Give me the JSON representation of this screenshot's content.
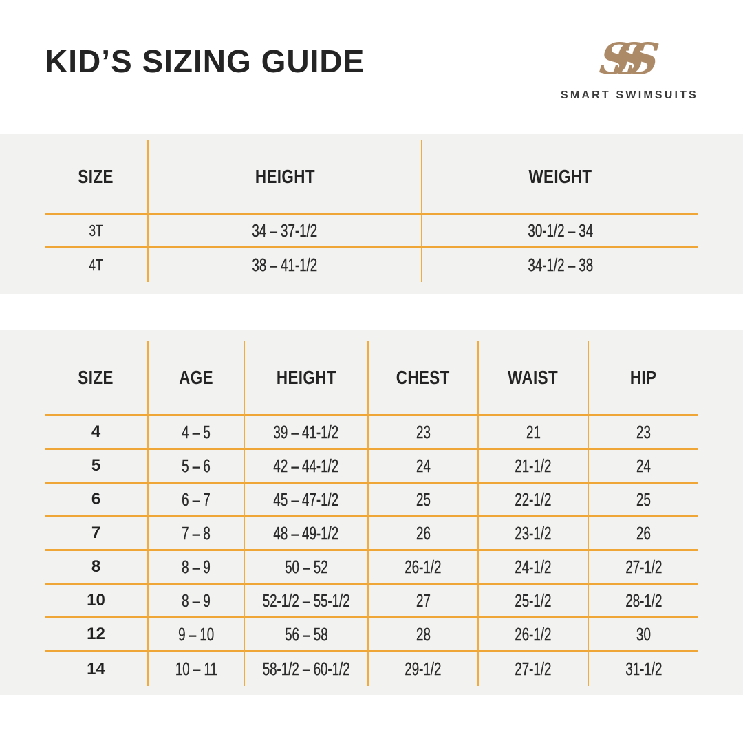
{
  "page": {
    "title": "KID’S SIZING GUIDE",
    "brand": {
      "name": "SMART SWIMSUITS",
      "monogram_letters": [
        "S",
        "S",
        "S"
      ],
      "logo_color": "#AC8A67"
    }
  },
  "colors": {
    "accent_line": "#F0A636",
    "band_background": "#F2F2F0",
    "title_text": "#242424",
    "cell_text": "#2B2B2B"
  },
  "toddler_table": {
    "headers": [
      "SIZE",
      "HEIGHT",
      "WEIGHT"
    ],
    "rows": [
      [
        "3T",
        "34 – 37-1/2",
        "30-1/2 – 34"
      ],
      [
        "4T",
        "38 – 41-1/2",
        "34-1/2 – 38"
      ]
    ]
  },
  "kids_table": {
    "headers": [
      "SIZE",
      "AGE",
      "HEIGHT",
      "CHEST",
      "WAIST",
      "HIP"
    ],
    "rows": [
      [
        "4",
        "4 – 5",
        "39 – 41-1/2",
        "23",
        "21",
        "23"
      ],
      [
        "5",
        "5 – 6",
        "42 – 44-1/2",
        "24",
        "21-1/2",
        "24"
      ],
      [
        "6",
        "6 – 7",
        "45 – 47-1/2",
        "25",
        "22-1/2",
        "25"
      ],
      [
        "7",
        "7 – 8",
        "48 – 49-1/2",
        "26",
        "23-1/2",
        "26"
      ],
      [
        "8",
        "8 – 9",
        "50 – 52",
        "26-1/2",
        "24-1/2",
        "27-1/2"
      ],
      [
        "10",
        "8 – 9",
        "52-1/2 – 55-1/2",
        "27",
        "25-1/2",
        "28-1/2"
      ],
      [
        "12",
        "9 – 10",
        "56 – 58",
        "28",
        "26-1/2",
        "30"
      ],
      [
        "14",
        "10 – 11",
        "58-1/2 – 60-1/2",
        "29-1/2",
        "27-1/2",
        "31-1/2"
      ]
    ]
  }
}
